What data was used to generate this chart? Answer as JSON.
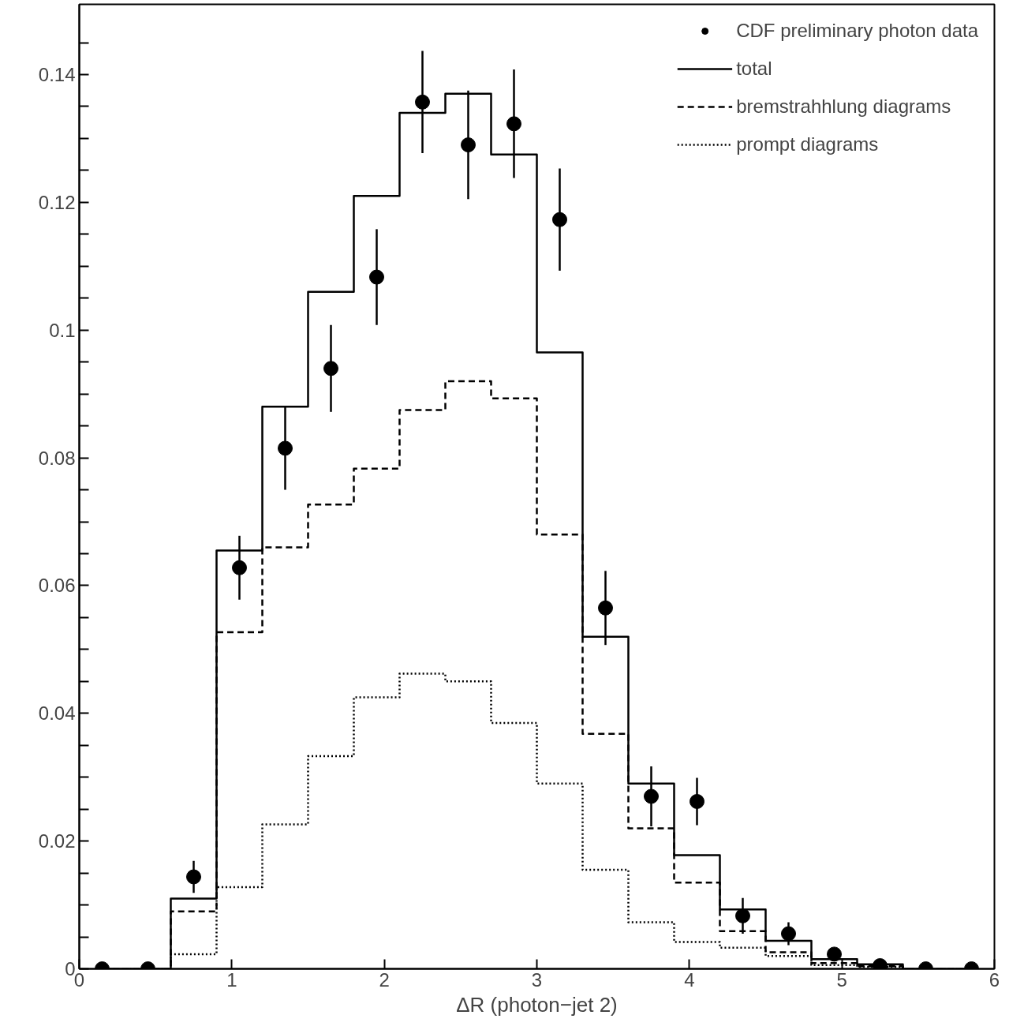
{
  "chart_data": {
    "type": "step",
    "xlabel": "ΔR (photon−jet 2)",
    "x": [
      0.15,
      0.45,
      0.75,
      1.05,
      1.35,
      1.65,
      1.95,
      2.25,
      2.55,
      2.85,
      3.15,
      3.45,
      3.75,
      4.05,
      4.35,
      4.65,
      4.95,
      5.25,
      5.55,
      5.85
    ],
    "series": [
      {
        "name": "CDF preliminary photon data",
        "type": "scatter",
        "marker": "circle",
        "color": "#000000",
        "values": [
          0,
          0,
          0.0144,
          0.0628,
          0.0815,
          0.094,
          0.1083,
          0.1357,
          0.129,
          0.1323,
          0.1173,
          0.0565,
          0.027,
          0.0262,
          0.0083,
          0.0055,
          0.0023,
          0.0005,
          0,
          0
        ],
        "errors": [
          null,
          null,
          0.0025,
          0.005,
          0.0065,
          0.0068,
          0.0075,
          0.008,
          0.0085,
          0.0085,
          0.008,
          0.0058,
          0.0047,
          0.0037,
          0.0028,
          0.0018,
          null,
          null,
          null,
          null
        ]
      },
      {
        "name": "total",
        "color": "#000000",
        "line_style": "solid",
        "values": [
          0,
          0,
          0.011,
          0.0655,
          0.088,
          0.106,
          0.121,
          0.134,
          0.137,
          0.1275,
          0.0965,
          0.052,
          0.029,
          0.0178,
          0.0093,
          0.0044,
          0.0015,
          0.0007,
          0,
          0
        ]
      },
      {
        "name": "bremstrahhlung diagrams",
        "color": "#000000",
        "line_style": "dashed",
        "values": [
          0,
          0,
          0.009,
          0.0527,
          0.066,
          0.0727,
          0.0783,
          0.0875,
          0.092,
          0.0893,
          0.068,
          0.0368,
          0.022,
          0.0135,
          0.0059,
          0.0026,
          0.0009,
          0.0004,
          0,
          0
        ]
      },
      {
        "name": "prompt diagrams",
        "color": "#000000",
        "line_style": "dotted",
        "values": [
          0,
          0,
          0.0023,
          0.0128,
          0.0226,
          0.0333,
          0.0425,
          0.0462,
          0.045,
          0.0385,
          0.029,
          0.0155,
          0.0073,
          0.0042,
          0.0033,
          0.002,
          0.0006,
          0.0003,
          0,
          0
        ]
      }
    ],
    "xlim": [
      0,
      6
    ],
    "ylim": [
      0,
      0.151
    ],
    "xticks": [
      0,
      1,
      2,
      3,
      4,
      5,
      6
    ],
    "yticks": [
      0,
      {
        "value": 0.005,
        "label": null
      },
      {
        "value": 0.01,
        "label": null
      },
      {
        "value": 0.015,
        "label": null
      },
      0.02,
      {
        "value": 0.025,
        "label": null
      },
      {
        "value": 0.03,
        "label": null
      },
      {
        "value": 0.035,
        "label": null
      },
      0.04,
      {
        "value": 0.045,
        "label": null
      },
      {
        "value": 0.05,
        "label": null
      },
      {
        "value": 0.055,
        "label": null
      },
      0.06,
      {
        "value": 0.065,
        "label": null
      },
      {
        "value": 0.07,
        "label": null
      },
      {
        "value": 0.075,
        "label": null
      },
      0.08,
      {
        "value": 0.085,
        "label": null
      },
      {
        "value": 0.09,
        "label": null
      },
      {
        "value": 0.095,
        "label": null
      },
      {
        "value": 0.1,
        "label": "0.1"
      },
      {
        "value": 0.105,
        "label": null
      },
      {
        "value": 0.11,
        "label": null
      },
      {
        "value": 0.115,
        "label": null
      },
      0.12,
      {
        "value": 0.125,
        "label": null
      },
      {
        "value": 0.13,
        "label": null
      },
      {
        "value": 0.135,
        "label": null
      },
      0.14,
      {
        "value": 0.145,
        "label": null
      }
    ],
    "grid": false,
    "legend": "top right"
  }
}
